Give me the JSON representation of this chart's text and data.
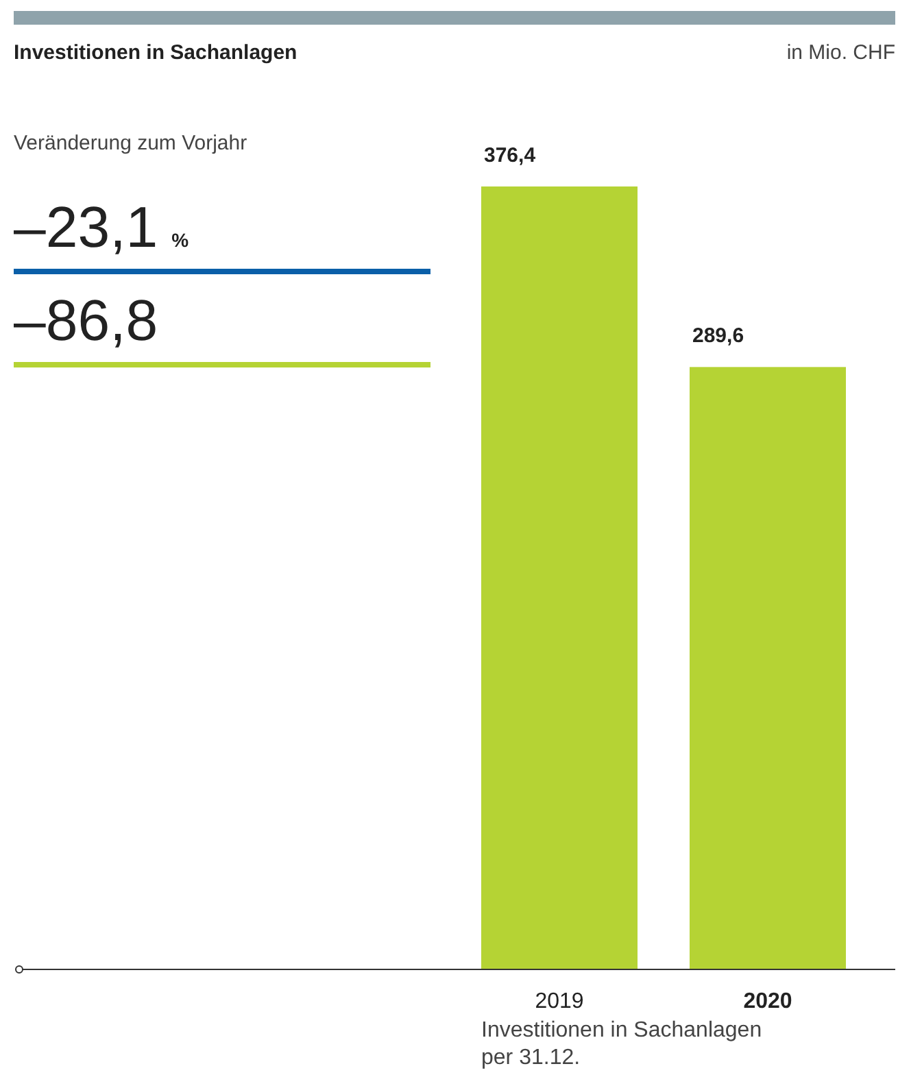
{
  "chart_data": {
    "type": "bar",
    "title": "Investitionen in Sachanlagen",
    "subtitle": "in Mio. CHF",
    "xlabel": "Investitionen in Sachanlagen per 31.12.",
    "categories": [
      "2019",
      "2020"
    ],
    "values": [
      376.4,
      289.6
    ],
    "value_labels": [
      "376,4",
      "289,6"
    ],
    "color": "#b5d334",
    "tick_labels": "x",
    "annotations": [
      "Veränderung zum Vorjahr",
      "–23,1 %",
      "–86,8"
    ]
  }
}
